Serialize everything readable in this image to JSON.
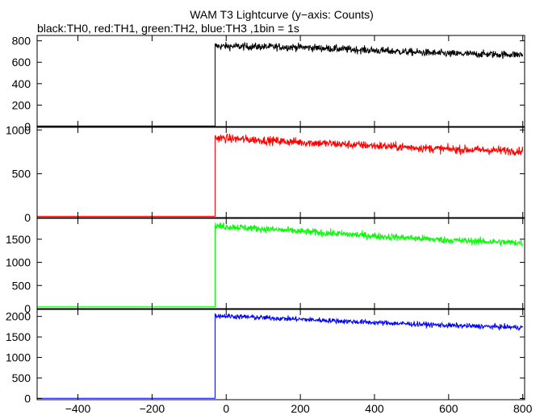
{
  "title": "WAM T3 Lightcurve (y−axis: Counts)",
  "subtitle": "black:TH0, red:TH1, green:TH2, blue:TH3 ,1bin = 1s",
  "chart_data": [
    {
      "type": "line",
      "name": "TH0",
      "color": "#000000",
      "x_ticks": [
        -400,
        -200,
        0,
        200,
        400,
        600,
        800
      ],
      "xlim": [
        -510,
        805
      ],
      "ylim": [
        0,
        850
      ],
      "y_ticks": [
        0,
        200,
        400,
        600,
        800
      ],
      "y_tick_labels": [
        "0",
        "200",
        "400",
        "600",
        "800"
      ],
      "pre_level": 5,
      "step_x": -30,
      "post_trend": [
        {
          "x": -30,
          "y": 750
        },
        {
          "x": 200,
          "y": 740
        },
        {
          "x": 400,
          "y": 710
        },
        {
          "x": 600,
          "y": 680
        },
        {
          "x": 800,
          "y": 670
        }
      ],
      "noise": 25
    },
    {
      "type": "line",
      "name": "TH1",
      "color": "#ff0000",
      "x_ticks": [
        -400,
        -200,
        0,
        200,
        400,
        600,
        800
      ],
      "xlim": [
        -510,
        805
      ],
      "ylim": [
        0,
        1030
      ],
      "y_ticks": [
        0,
        500,
        1000
      ],
      "y_tick_labels": [
        "0",
        "500",
        "1000"
      ],
      "pre_level": 15,
      "step_x": -30,
      "post_trend": [
        {
          "x": -30,
          "y": 910
        },
        {
          "x": 200,
          "y": 860
        },
        {
          "x": 400,
          "y": 820
        },
        {
          "x": 600,
          "y": 780
        },
        {
          "x": 800,
          "y": 760
        }
      ],
      "noise": 35
    },
    {
      "type": "line",
      "name": "TH2",
      "color": "#00ff00",
      "x_ticks": [
        -400,
        -200,
        0,
        200,
        400,
        600,
        800
      ],
      "xlim": [
        -510,
        805
      ],
      "ylim": [
        0,
        1950
      ],
      "y_ticks": [
        0,
        500,
        1000,
        1500
      ],
      "y_tick_labels": [
        "0",
        "500",
        "1000",
        "1500"
      ],
      "pre_level": 40,
      "step_x": -30,
      "post_trend": [
        {
          "x": -30,
          "y": 1790
        },
        {
          "x": 200,
          "y": 1670
        },
        {
          "x": 400,
          "y": 1570
        },
        {
          "x": 600,
          "y": 1480
        },
        {
          "x": 800,
          "y": 1420
        }
      ],
      "noise": 55
    },
    {
      "type": "line",
      "name": "TH3",
      "color": "#0000ff",
      "x_ticks": [
        -400,
        -200,
        0,
        200,
        400,
        600,
        800
      ],
      "xlim": [
        -510,
        805
      ],
      "ylim": [
        -30,
        2170
      ],
      "y_ticks": [
        0,
        500,
        1000,
        1500,
        2000
      ],
      "y_tick_labels": [
        "0",
        "500",
        "1000",
        "1500",
        "2000"
      ],
      "pre_level": 5,
      "step_x": -30,
      "post_trend": [
        {
          "x": -30,
          "y": 2020
        },
        {
          "x": 200,
          "y": 1930
        },
        {
          "x": 400,
          "y": 1850
        },
        {
          "x": 600,
          "y": 1780
        },
        {
          "x": 800,
          "y": 1730
        }
      ],
      "noise": 45
    }
  ],
  "x_tick_labels": [
    "−400",
    "−200",
    "0",
    "200",
    "400",
    "600",
    "800"
  ]
}
